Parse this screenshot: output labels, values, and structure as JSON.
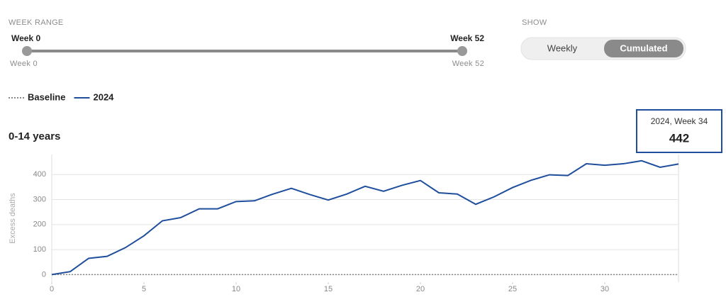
{
  "controls": {
    "week_range": {
      "label": "WEEK RANGE",
      "start_label": "Week 0",
      "end_label": "Week 52",
      "min_label": "Week 0",
      "max_label": "Week 52"
    },
    "show": {
      "label": "SHOW",
      "options": [
        "Weekly",
        "Cumulated"
      ],
      "selected": 1
    }
  },
  "chart_data": {
    "type": "line",
    "title": "0-14 years",
    "y_label": "Excess deaths",
    "x": [
      0,
      1,
      2,
      3,
      4,
      5,
      6,
      7,
      8,
      9,
      10,
      11,
      12,
      13,
      14,
      15,
      16,
      17,
      18,
      19,
      20,
      21,
      22,
      23,
      24,
      25,
      26,
      27,
      28,
      29,
      30,
      31,
      32,
      33,
      34
    ],
    "series": [
      {
        "name": "Baseline",
        "color": "#8a8a8a",
        "style": "dotted",
        "values": [
          0,
          0,
          0,
          0,
          0,
          0,
          0,
          0,
          0,
          0,
          0,
          0,
          0,
          0,
          0,
          0,
          0,
          0,
          0,
          0,
          0,
          0,
          0,
          0,
          0,
          0,
          0,
          0,
          0,
          0,
          0,
          0,
          0,
          0,
          0
        ]
      },
      {
        "name": "2024",
        "color": "#1f4e9c",
        "style": "solid",
        "values": [
          0,
          12,
          65,
          73,
          108,
          155,
          215,
          228,
          263,
          263,
          292,
          295,
          322,
          345,
          320,
          298,
          322,
          353,
          333,
          357,
          376,
          327,
          322,
          281,
          311,
          348,
          377,
          399,
          396,
          443,
          437,
          443,
          455,
          429,
          442
        ]
      }
    ],
    "xlim": [
      0,
      34
    ],
    "xticks": [
      0,
      5,
      10,
      15,
      20,
      25,
      30
    ],
    "ylim": [
      -30,
      480
    ],
    "yticks": [
      0,
      100,
      200,
      300,
      400
    ],
    "grid": true,
    "tooltip": {
      "title": "2024, Week 34",
      "series": 1,
      "index": 34
    }
  }
}
